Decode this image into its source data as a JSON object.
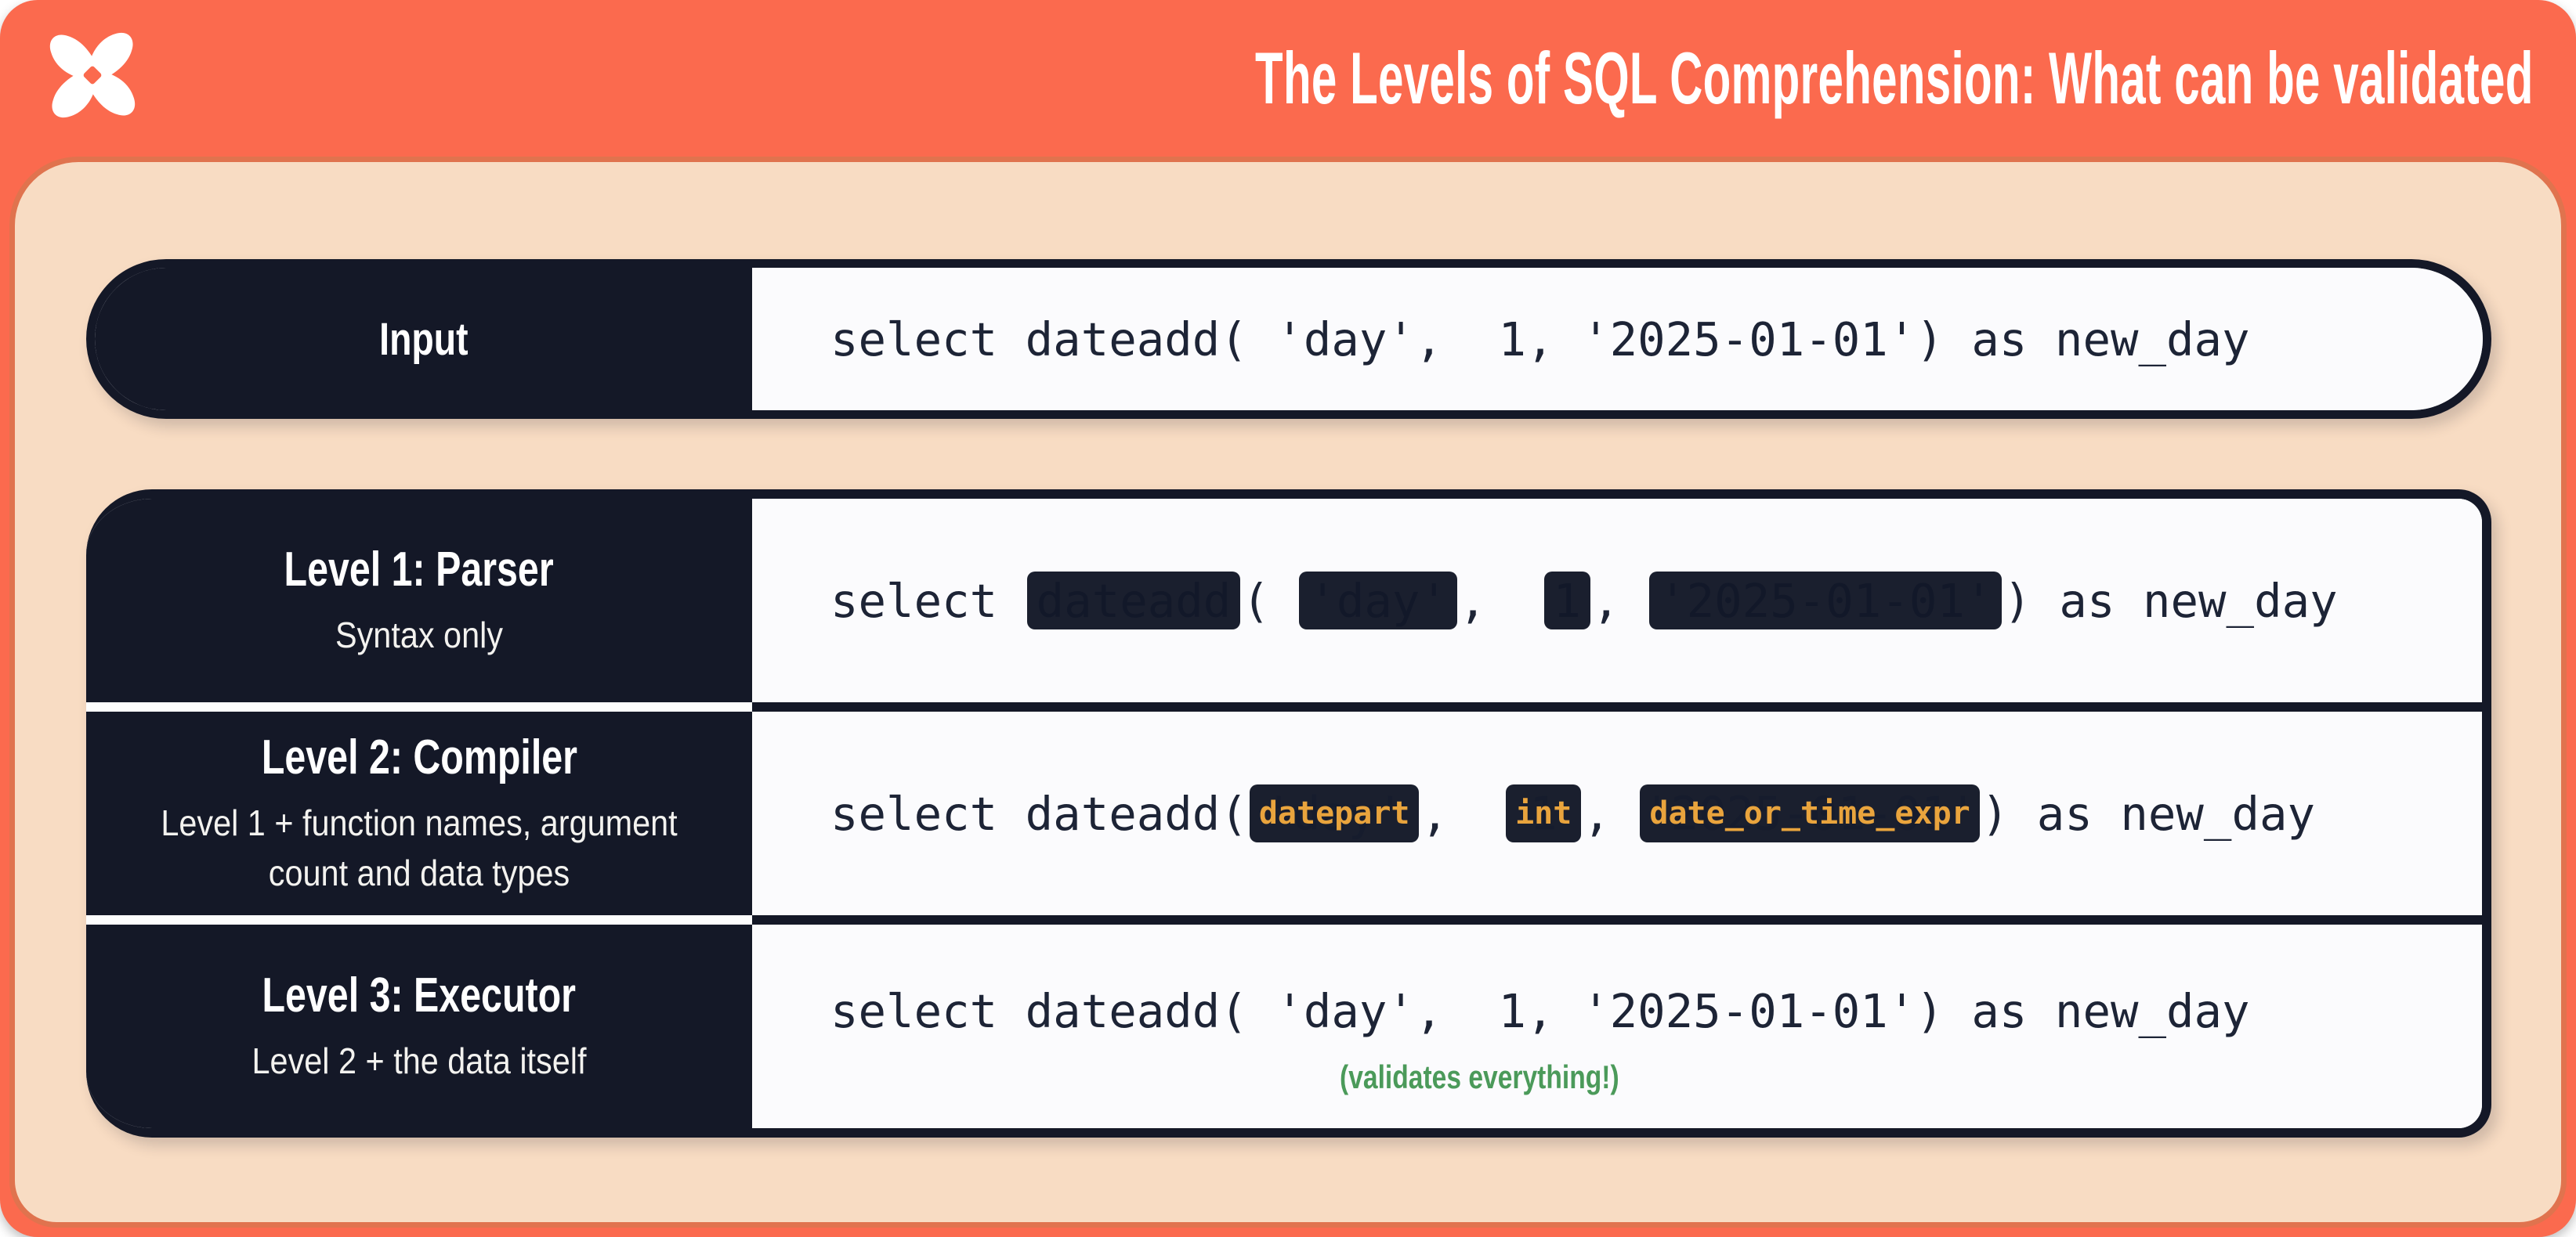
{
  "colors": {
    "coral": "#fb6a4e",
    "coral_border": "#e0734e",
    "peach": "#f8dcc3",
    "navy": "#141827",
    "content_white": "#fbfbfd",
    "code_text": "#1d2436",
    "badge_background": "#1a1f2e",
    "badge_orange": "#e9a43d",
    "note_green": "#4b9a5a"
  },
  "header": {
    "title": "The Levels of SQL Comprehension: What can be validated",
    "logo": "dbt-logo"
  },
  "input_row": {
    "label": "Input",
    "code": [
      {
        "type": "code",
        "text": "select dateadd( 'day',  1, '2025-01-01') as new_day"
      }
    ]
  },
  "levels": [
    {
      "title": "Level 1: Parser",
      "subtitle": "Syntax only",
      "code": [
        {
          "type": "code",
          "text": "select "
        },
        {
          "type": "redact",
          "text": "dateadd"
        },
        {
          "type": "code",
          "text": "( "
        },
        {
          "type": "redact",
          "text": "'day'"
        },
        {
          "type": "code",
          "text": ",  "
        },
        {
          "type": "redact",
          "text": "1"
        },
        {
          "type": "code",
          "text": ", "
        },
        {
          "type": "redact",
          "text": "'2025-01-01'"
        },
        {
          "type": "code",
          "text": ") as new_day"
        }
      ]
    },
    {
      "title": "Level 2: Compiler",
      "subtitle": "Level 1 + function names, argument count and data types",
      "code": [
        {
          "type": "code",
          "text": "select dateadd("
        },
        {
          "type": "badge",
          "text": "datepart",
          "under": "'day'"
        },
        {
          "type": "code",
          "text": ",  "
        },
        {
          "type": "badge",
          "text": "int",
          "under": "1"
        },
        {
          "type": "code",
          "text": ", "
        },
        {
          "type": "badge",
          "text": "date_or_time_expr",
          "under": "'2025-01-01'"
        },
        {
          "type": "code",
          "text": ") as new_day"
        }
      ]
    },
    {
      "title": "Level 3: Executor",
      "subtitle": "Level 2 + the data itself",
      "code": [
        {
          "type": "code",
          "text": "select dateadd( 'day',  1, '2025-01-01') as new_day"
        }
      ],
      "note": "(validates everything!)"
    }
  ]
}
